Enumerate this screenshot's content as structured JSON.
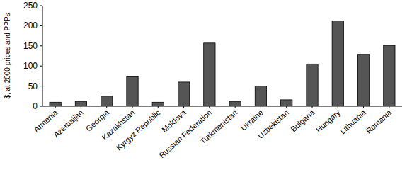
{
  "chart_data": {
    "type": "bar",
    "y_label": "$, at 2000 prices and PPPs",
    "categories": [
      "Armenia",
      "Azerbaijan",
      "Georgia",
      "Kazakhstan",
      "Kyrgyz Republic",
      "Moldova",
      "Russian Federation",
      "Turkmenistan",
      "Ukraine",
      "Uzbekistan",
      "Bulgaria",
      "Hungary",
      "Lithuania",
      "Romania"
    ],
    "values": [
      10,
      12,
      25,
      73,
      10,
      60,
      157,
      12,
      50,
      16,
      105,
      212,
      129,
      151
    ],
    "color": "#555555",
    "ylim": [
      0,
      250
    ],
    "yticks": [
      0,
      50,
      100,
      150,
      200,
      250
    ],
    "grid": false
  }
}
